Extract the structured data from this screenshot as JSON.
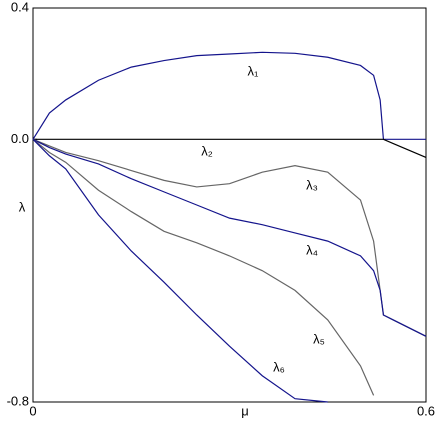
{
  "chart_data": {
    "type": "line",
    "xlabel": "μ",
    "ylabel": "λ",
    "x": [
      0,
      0.025,
      0.05,
      0.1,
      0.15,
      0.2,
      0.25,
      0.3,
      0.35,
      0.4,
      0.45,
      0.5,
      0.52,
      0.53,
      0.535,
      0.55,
      0.6
    ],
    "series": [
      {
        "name": "λ₁",
        "color": "#14148c",
        "values": [
          0,
          0.08,
          0.12,
          0.18,
          0.22,
          0.24,
          0.255,
          0.26,
          0.265,
          0.262,
          0.25,
          0.225,
          0.195,
          0.12,
          0,
          0,
          0
        ]
      },
      {
        "name": "λ₂",
        "color": "#000000",
        "values": [
          0,
          0,
          0,
          0,
          0,
          0,
          0,
          0,
          0,
          0,
          0,
          0,
          0,
          0,
          0,
          -0.013,
          -0.055
        ]
      },
      {
        "name": "λ₃",
        "color": "#666666",
        "values": [
          0,
          -0.02,
          -0.04,
          -0.065,
          -0.095,
          -0.125,
          -0.145,
          -0.135,
          -0.1,
          -0.08,
          -0.1,
          -0.185,
          -0.31,
          -0.46,
          -0.535,
          -0.55,
          -0.6
        ]
      },
      {
        "name": "λ₄",
        "color": "#14148c",
        "values": [
          0,
          -0.025,
          -0.045,
          -0.075,
          -0.12,
          -0.16,
          -0.2,
          -0.24,
          -0.26,
          -0.285,
          -0.31,
          -0.355,
          -0.4,
          -0.46,
          -0.535,
          -0.55,
          -0.6
        ]
      },
      {
        "name": "λ₅",
        "color": "#666666",
        "values": [
          0,
          -0.04,
          -0.07,
          -0.155,
          -0.22,
          -0.28,
          -0.315,
          -0.355,
          -0.4,
          -0.46,
          -0.55,
          -0.69,
          -0.78,
          null,
          null,
          null,
          null
        ]
      },
      {
        "name": "λ₆",
        "color": "#14148c",
        "values": [
          0,
          -0.05,
          -0.09,
          -0.23,
          -0.34,
          -0.435,
          -0.535,
          -0.63,
          -0.72,
          -0.79,
          -0.8,
          null,
          null,
          null,
          null,
          null,
          null
        ]
      }
    ],
    "xlim": [
      0,
      0.6
    ],
    "ylim": [
      -0.8,
      0.4
    ],
    "xticks": [
      0,
      0.6
    ],
    "yticks": [
      0.4,
      {
        "value": 0,
        "label": "0.0"
      },
      -0.8
    ],
    "grid": false
  }
}
